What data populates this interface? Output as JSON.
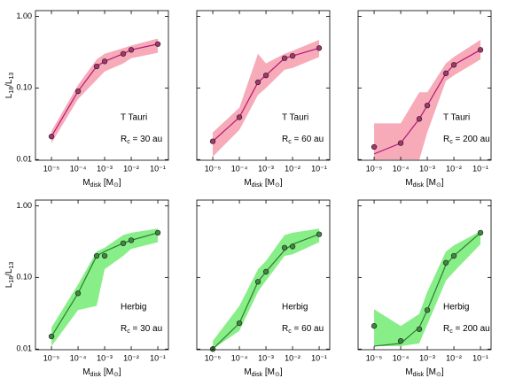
{
  "chart_data": [
    {
      "type": "line",
      "x": [
        1e-05,
        0.0001,
        0.0005,
        0.001,
        0.005,
        0.01,
        0.1
      ],
      "values": [
        0.021,
        0.09,
        0.2,
        0.235,
        0.3,
        0.34,
        0.41
      ],
      "model": [
        0.021,
        0.09,
        0.2,
        0.235,
        0.3,
        0.34,
        0.41
      ],
      "band_lower": [
        0.017,
        0.07,
        0.13,
        0.17,
        0.22,
        0.26,
        0.31
      ],
      "band_upper": [
        0.025,
        0.11,
        0.25,
        0.3,
        0.36,
        0.39,
        0.49
      ],
      "color": "#a8356f",
      "line_color": "#b5177a",
      "band_color": "#f7aab8",
      "xlim": [
        2.5e-06,
        0.25
      ],
      "ylim": [
        0.0098,
        1.2
      ],
      "xticks": [
        {
          "value": 1e-05,
          "label": "10⁻⁵"
        },
        {
          "value": 0.0001,
          "label": "10⁻⁴"
        },
        {
          "value": 0.001,
          "label": "10⁻³"
        },
        {
          "value": 0.01,
          "label": "10⁻²"
        },
        {
          "value": 0.1,
          "label": "10⁻¹"
        }
      ],
      "yticks": [
        0.01,
        {
          "value": 0.1,
          "label": "0.10"
        },
        {
          "value": 1,
          "label": "1.00"
        }
      ],
      "show_ytick_labels": true,
      "ylabel": [
        "L",
        "18",
        "/L",
        "13"
      ],
      "xlabel": [
        "M",
        "disk",
        " [M",
        "⊙",
        "]"
      ],
      "annotation": "T Tauri",
      "radius_label": [
        "R",
        "c",
        " = 30 au"
      ]
    },
    {
      "type": "line",
      "x": [
        1e-05,
        0.0001,
        0.0005,
        0.001,
        0.005,
        0.01,
        0.1
      ],
      "values": [
        0.018,
        0.039,
        0.12,
        0.15,
        0.26,
        0.28,
        0.36
      ],
      "model": [
        0.018,
        0.039,
        0.12,
        0.15,
        0.26,
        0.28,
        0.36
      ],
      "band_lower": [
        0.011,
        0.026,
        0.08,
        0.1,
        0.18,
        0.19,
        0.27
      ],
      "band_upper": [
        0.024,
        0.053,
        0.3,
        0.22,
        0.3,
        0.33,
        0.47
      ],
      "color": "#a8356f",
      "line_color": "#b5177a",
      "band_color": "#f7aab8",
      "xlim": [
        2.5e-06,
        0.25
      ],
      "ylim": [
        0.0098,
        1.2
      ],
      "xticks": [
        {
          "value": 1e-05,
          "label": "10⁻⁵"
        },
        {
          "value": 0.0001,
          "label": "10⁻⁴"
        },
        {
          "value": 0.001,
          "label": "10⁻³"
        },
        {
          "value": 0.01,
          "label": "10⁻²"
        },
        {
          "value": 0.1,
          "label": "10⁻¹"
        }
      ],
      "yticks": [
        0.01,
        0.1,
        1
      ],
      "show_ytick_labels": false,
      "xlabel": [
        "M",
        "disk",
        " [M",
        "⊙",
        "]"
      ],
      "annotation": "T Tauri",
      "radius_label": [
        "R",
        "c",
        " = 60 au"
      ]
    },
    {
      "type": "line",
      "x": [
        1e-05,
        0.0001,
        0.0005,
        0.001,
        0.005,
        0.01,
        0.1
      ],
      "values": [
        0.015,
        0.017,
        0.037,
        0.057,
        0.16,
        0.21,
        0.34
      ],
      "model": [
        0.012,
        0.017,
        0.037,
        0.057,
        0.16,
        0.21,
        0.34
      ],
      "band_lower": [
        0.01,
        0.01,
        0.01,
        0.024,
        0.125,
        0.15,
        0.25
      ],
      "band_upper": [
        0.032,
        0.032,
        0.087,
        0.087,
        0.22,
        0.27,
        0.47
      ],
      "color": "#a8356f",
      "line_color": "#b5177a",
      "band_color": "#f7aab8",
      "xlim": [
        2.5e-06,
        0.25
      ],
      "ylim": [
        0.0098,
        1.2
      ],
      "xticks": [
        {
          "value": 1e-05,
          "label": "10⁻⁵"
        },
        {
          "value": 0.0001,
          "label": "10⁻⁴"
        },
        {
          "value": 0.001,
          "label": "10⁻³"
        },
        {
          "value": 0.01,
          "label": "10⁻²"
        },
        {
          "value": 0.1,
          "label": "10⁻¹"
        }
      ],
      "yticks": [
        0.01,
        0.1,
        1
      ],
      "show_ytick_labels": false,
      "xlabel": [
        "M",
        "disk",
        " [M",
        "⊙",
        "]"
      ],
      "annotation": "T Tauri",
      "radius_label": [
        "R",
        "c",
        " = 200 au"
      ]
    },
    {
      "type": "line",
      "x": [
        1e-05,
        0.0001,
        0.0005,
        0.001,
        0.005,
        0.01,
        0.1
      ],
      "values": [
        0.015,
        0.06,
        0.2,
        0.2,
        0.3,
        0.33,
        0.42
      ],
      "model": [
        0.015,
        0.06,
        0.2,
        0.23,
        0.3,
        0.33,
        0.42
      ],
      "band_lower": [
        0.011,
        0.035,
        0.04,
        0.13,
        0.2,
        0.25,
        0.31
      ],
      "band_upper": [
        0.02,
        0.08,
        0.23,
        0.26,
        0.39,
        0.42,
        0.48
      ],
      "color": "#3d8b3d",
      "line_color": "#2e7d32",
      "band_color": "#88ee88",
      "xlim": [
        2.5e-06,
        0.25
      ],
      "ylim": [
        0.0098,
        1.2
      ],
      "xticks": [
        {
          "value": 1e-05,
          "label": "10⁻⁵"
        },
        {
          "value": 0.0001,
          "label": "10⁻⁴"
        },
        {
          "value": 0.001,
          "label": "10⁻³"
        },
        {
          "value": 0.01,
          "label": "10⁻²"
        },
        {
          "value": 0.1,
          "label": "10⁻¹"
        }
      ],
      "yticks": [
        0.01,
        {
          "value": 0.1,
          "label": "0.10"
        },
        {
          "value": 1,
          "label": "1.00"
        }
      ],
      "show_ytick_labels": true,
      "ylabel": [
        "L",
        "18",
        "/L",
        "13"
      ],
      "xlabel": [
        "M",
        "disk",
        " [M",
        "⊙",
        "]"
      ],
      "annotation": "Herbig",
      "radius_label": [
        "R",
        "c",
        " = 30 au"
      ]
    },
    {
      "type": "line",
      "x": [
        1e-05,
        0.0001,
        0.0005,
        0.001,
        0.005,
        0.01,
        0.1
      ],
      "values": [
        0.01,
        0.023,
        0.087,
        0.12,
        0.26,
        0.27,
        0.4
      ],
      "model": [
        0.01,
        0.023,
        0.087,
        0.12,
        0.24,
        0.29,
        0.4
      ],
      "band_lower": [
        0.01,
        0.018,
        0.063,
        0.09,
        0.2,
        0.21,
        0.31
      ],
      "band_upper": [
        0.013,
        0.04,
        0.13,
        0.17,
        0.39,
        0.42,
        0.48
      ],
      "color": "#3d8b3d",
      "line_color": "#2e7d32",
      "band_color": "#88ee88",
      "xlim": [
        2.5e-06,
        0.25
      ],
      "ylim": [
        0.0098,
        1.2
      ],
      "xticks": [
        {
          "value": 1e-05,
          "label": "10⁻⁵"
        },
        {
          "value": 0.0001,
          "label": "10⁻⁴"
        },
        {
          "value": 0.001,
          "label": "10⁻³"
        },
        {
          "value": 0.01,
          "label": "10⁻²"
        },
        {
          "value": 0.1,
          "label": "10⁻¹"
        }
      ],
      "yticks": [
        0.01,
        0.1,
        1
      ],
      "show_ytick_labels": false,
      "xlabel": [
        "M",
        "disk",
        " [M",
        "⊙",
        "]"
      ],
      "annotation": "Herbig",
      "radius_label": [
        "R",
        "c",
        " = 60 au"
      ]
    },
    {
      "type": "line",
      "x": [
        1e-05,
        0.0001,
        0.0005,
        0.001,
        0.005,
        0.01,
        0.1
      ],
      "values": [
        0.021,
        0.013,
        0.019,
        0.035,
        0.16,
        0.2,
        0.42
      ],
      "model": [
        0.011,
        0.012,
        0.02,
        0.035,
        0.15,
        0.2,
        0.42
      ],
      "band_lower": [
        0.011,
        0.011,
        0.012,
        0.022,
        0.09,
        0.12,
        0.29
      ],
      "band_upper": [
        0.036,
        0.021,
        0.031,
        0.063,
        0.23,
        0.28,
        0.44
      ],
      "color": "#3d8b3d",
      "line_color": "#2e7d32",
      "band_color": "#88ee88",
      "xlim": [
        2.5e-06,
        0.25
      ],
      "ylim": [
        0.0098,
        1.2
      ],
      "xticks": [
        {
          "value": 1e-05,
          "label": "10⁻⁵"
        },
        {
          "value": 0.0001,
          "label": "10⁻⁴"
        },
        {
          "value": 0.001,
          "label": "10⁻³"
        },
        {
          "value": 0.01,
          "label": "10⁻²"
        },
        {
          "value": 0.1,
          "label": "10⁻¹"
        }
      ],
      "yticks": [
        0.01,
        0.1,
        1
      ],
      "show_ytick_labels": false,
      "xlabel": [
        "M",
        "disk",
        " [M",
        "⊙",
        "]"
      ],
      "annotation": "Herbig",
      "radius_label": [
        "R",
        "c",
        " = 200 au"
      ]
    }
  ]
}
